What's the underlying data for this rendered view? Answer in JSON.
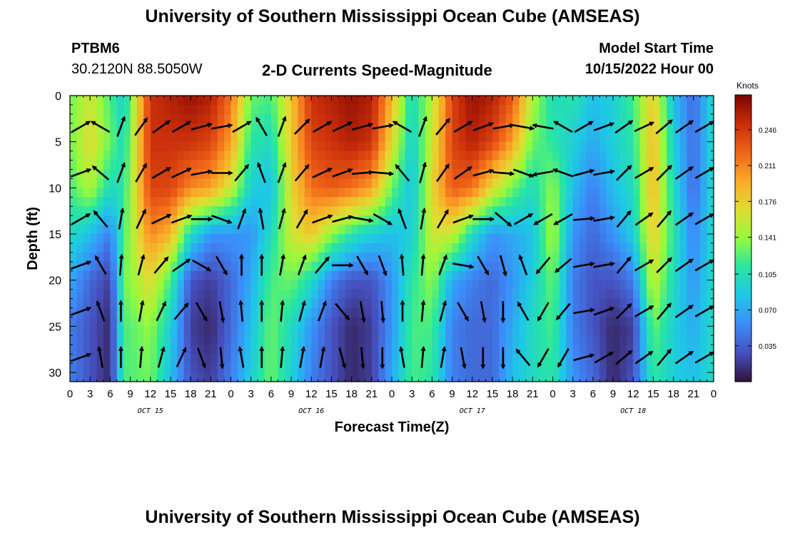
{
  "page": {
    "title": "University of Southern Mississippi Ocean Cube (AMSEAS)",
    "footer_title": "University of Southern Mississippi Ocean Cube (AMSEAS)",
    "station_id": "PTBM6",
    "station_coords": "30.2120N  88.5050W",
    "subtitle": "2-D Currents Speed-Magnitude",
    "model_start_label": "Model Start Time",
    "model_start_value": "10/15/2022 Hour 00"
  },
  "chart_data": {
    "type": "heatmap",
    "title": "2-D Currents Speed-Magnitude",
    "xlabel": "Forecast Time(Z)",
    "ylabel": "Depth (ft)",
    "xlim": [
      0,
      96
    ],
    "ylim": [
      0,
      31
    ],
    "x_ticks": [
      0,
      3,
      6,
      9,
      12,
      15,
      18,
      21,
      24,
      27,
      30,
      33,
      36,
      39,
      42,
      45,
      48,
      51,
      54,
      57,
      60,
      63,
      66,
      69,
      72,
      75,
      78,
      81,
      84,
      87,
      90,
      93,
      96
    ],
    "x_tick_labels": [
      "0",
      "3",
      "6",
      "9",
      "12",
      "15",
      "18",
      "21",
      "0",
      "3",
      "6",
      "9",
      "12",
      "15",
      "18",
      "21",
      "0",
      "3",
      "6",
      "9",
      "12",
      "15",
      "18",
      "21",
      "0",
      "3",
      "6",
      "9",
      "12",
      "15",
      "18",
      "21",
      "0"
    ],
    "y_ticks": [
      0,
      5,
      10,
      15,
      20,
      25,
      30
    ],
    "y_tick_labels": [
      "0",
      "5",
      "10",
      "15",
      "20",
      "25",
      "30"
    ],
    "date_labels": [
      {
        "text": "OCT 15",
        "x": 12
      },
      {
        "text": "OCT 16",
        "x": 36
      },
      {
        "text": "OCT 17",
        "x": 60
      },
      {
        "text": "OCT 18",
        "x": 84
      }
    ],
    "colorbar": {
      "title": "Knots",
      "ticks": [
        0.035,
        0.07,
        0.105,
        0.141,
        0.176,
        0.211,
        0.246
      ],
      "tick_labels": [
        "0.035",
        "0.070",
        "0.105",
        "0.141",
        "0.176",
        "0.211",
        "0.246"
      ],
      "range": [
        0,
        0.28
      ],
      "colormap": "turbo"
    },
    "speed_profiles": [
      {
        "t": 0,
        "s": [
          0.13,
          0.13,
          0.12,
          0.1,
          0.07,
          0.05,
          0.05
        ]
      },
      {
        "t": 3,
        "s": [
          0.16,
          0.17,
          0.15,
          0.08,
          0.04,
          0.03,
          0.03
        ]
      },
      {
        "t": 6,
        "s": [
          0.12,
          0.13,
          0.1,
          0.05,
          0.02,
          0.01,
          0.01
        ]
      },
      {
        "t": 8,
        "s": [
          0.09,
          0.1,
          0.11,
          0.12,
          0.13,
          0.12,
          0.12
        ]
      },
      {
        "t": 12,
        "s": [
          0.25,
          0.25,
          0.24,
          0.21,
          0.17,
          0.14,
          0.13
        ]
      },
      {
        "t": 15,
        "s": [
          0.26,
          0.25,
          0.24,
          0.19,
          0.12,
          0.09,
          0.08
        ]
      },
      {
        "t": 18,
        "s": [
          0.27,
          0.25,
          0.21,
          0.1,
          0.03,
          0.02,
          0.03
        ]
      },
      {
        "t": 21,
        "s": [
          0.26,
          0.24,
          0.2,
          0.06,
          0.02,
          0.01,
          0.02
        ]
      },
      {
        "t": 24,
        "s": [
          0.22,
          0.2,
          0.16,
          0.06,
          0.04,
          0.04,
          0.05
        ]
      },
      {
        "t": 27,
        "s": [
          0.13,
          0.11,
          0.09,
          0.06,
          0.07,
          0.08,
          0.09
        ]
      },
      {
        "t": 30,
        "s": [
          0.12,
          0.1,
          0.08,
          0.1,
          0.12,
          0.13,
          0.13
        ]
      },
      {
        "t": 33,
        "s": [
          0.18,
          0.18,
          0.17,
          0.16,
          0.13,
          0.1,
          0.09
        ]
      },
      {
        "t": 36,
        "s": [
          0.25,
          0.24,
          0.22,
          0.18,
          0.1,
          0.06,
          0.05
        ]
      },
      {
        "t": 39,
        "s": [
          0.26,
          0.25,
          0.23,
          0.14,
          0.05,
          0.03,
          0.03
        ]
      },
      {
        "t": 42,
        "s": [
          0.27,
          0.26,
          0.22,
          0.11,
          0.03,
          0.01,
          0.01
        ]
      },
      {
        "t": 45,
        "s": [
          0.26,
          0.25,
          0.2,
          0.09,
          0.03,
          0.02,
          0.02
        ]
      },
      {
        "t": 48,
        "s": [
          0.19,
          0.17,
          0.13,
          0.08,
          0.06,
          0.06,
          0.07
        ]
      },
      {
        "t": 51,
        "s": [
          0.1,
          0.09,
          0.08,
          0.09,
          0.11,
          0.12,
          0.12
        ]
      },
      {
        "t": 54,
        "s": [
          0.15,
          0.16,
          0.17,
          0.16,
          0.14,
          0.12,
          0.11
        ]
      },
      {
        "t": 57,
        "s": [
          0.24,
          0.24,
          0.23,
          0.16,
          0.07,
          0.05,
          0.05
        ]
      },
      {
        "t": 60,
        "s": [
          0.27,
          0.26,
          0.22,
          0.1,
          0.05,
          0.04,
          0.04
        ]
      },
      {
        "t": 63,
        "s": [
          0.26,
          0.24,
          0.17,
          0.06,
          0.04,
          0.04,
          0.04
        ]
      },
      {
        "t": 66,
        "s": [
          0.23,
          0.2,
          0.13,
          0.07,
          0.06,
          0.07,
          0.08
        ]
      },
      {
        "t": 69,
        "s": [
          0.15,
          0.13,
          0.1,
          0.08,
          0.09,
          0.1,
          0.1
        ]
      },
      {
        "t": 72,
        "s": [
          0.1,
          0.11,
          0.14,
          0.15,
          0.13,
          0.12,
          0.11
        ]
      },
      {
        "t": 75,
        "s": [
          0.11,
          0.09,
          0.08,
          0.06,
          0.05,
          0.05,
          0.06
        ]
      },
      {
        "t": 78,
        "s": [
          0.08,
          0.07,
          0.05,
          0.04,
          0.03,
          0.03,
          0.04
        ]
      },
      {
        "t": 81,
        "s": [
          0.09,
          0.09,
          0.08,
          0.06,
          0.03,
          0.01,
          0.01
        ]
      },
      {
        "t": 84,
        "s": [
          0.12,
          0.11,
          0.1,
          0.09,
          0.05,
          0.02,
          0.03
        ]
      },
      {
        "t": 87,
        "s": [
          0.18,
          0.19,
          0.19,
          0.18,
          0.16,
          0.13,
          0.11
        ]
      },
      {
        "t": 90,
        "s": [
          0.08,
          0.09,
          0.1,
          0.11,
          0.1,
          0.09,
          0.09
        ]
      },
      {
        "t": 93,
        "s": [
          0.04,
          0.04,
          0.04,
          0.05,
          0.06,
          0.07,
          0.08
        ]
      },
      {
        "t": 96,
        "s": [
          0.1,
          0.1,
          0.1,
          0.1,
          0.1,
          0.1,
          0.1
        ]
      }
    ],
    "vector_columns": [
      {
        "t": 0,
        "dirs": [
          60,
          70,
          60,
          70,
          70,
          70
        ]
      },
      {
        "t": 3,
        "dirs": [
          -60,
          -50,
          -40,
          -30,
          -20,
          -10
        ]
      },
      {
        "t": 6,
        "dirs": [
          20,
          20,
          10,
          5,
          0,
          0
        ]
      },
      {
        "t": 9,
        "dirs": [
          35,
          30,
          25,
          15,
          10,
          5
        ]
      },
      {
        "t": 12,
        "dirs": [
          55,
          60,
          65,
          40,
          25,
          15
        ]
      },
      {
        "t": 15,
        "dirs": [
          60,
          65,
          70,
          55,
          40,
          25
        ]
      },
      {
        "t": 18,
        "dirs": [
          75,
          80,
          90,
          120,
          150,
          160
        ]
      },
      {
        "t": 21,
        "dirs": [
          80,
          90,
          110,
          150,
          170,
          175
        ]
      },
      {
        "t": 24,
        "dirs": [
          60,
          40,
          20,
          0,
          -5,
          -10
        ]
      },
      {
        "t": 27,
        "dirs": [
          -30,
          -20,
          -10,
          0,
          0,
          0
        ]
      },
      {
        "t": 30,
        "dirs": [
          20,
          20,
          15,
          10,
          5,
          5
        ]
      },
      {
        "t": 33,
        "dirs": [
          45,
          40,
          30,
          20,
          15,
          10
        ]
      },
      {
        "t": 36,
        "dirs": [
          60,
          65,
          70,
          40,
          20,
          10
        ]
      },
      {
        "t": 39,
        "dirs": [
          65,
          70,
          75,
          90,
          140,
          165
        ]
      },
      {
        "t": 42,
        "dirs": [
          75,
          85,
          100,
          150,
          170,
          175
        ]
      },
      {
        "t": 45,
        "dirs": [
          80,
          95,
          120,
          160,
          175,
          180
        ]
      },
      {
        "t": 48,
        "dirs": [
          -60,
          -40,
          -20,
          -5,
          0,
          -10
        ]
      },
      {
        "t": 51,
        "dirs": [
          20,
          15,
          10,
          5,
          5,
          5
        ]
      },
      {
        "t": 54,
        "dirs": [
          40,
          35,
          30,
          20,
          15,
          10
        ]
      },
      {
        "t": 57,
        "dirs": [
          60,
          55,
          70,
          100,
          150,
          170
        ]
      },
      {
        "t": 60,
        "dirs": [
          70,
          75,
          90,
          150,
          170,
          180
        ]
      },
      {
        "t": 63,
        "dirs": [
          80,
          95,
          130,
          165,
          180,
          180
        ]
      },
      {
        "t": 66,
        "dirs": [
          100,
          110,
          60,
          -20,
          -30,
          -40
        ]
      },
      {
        "t": 69,
        "dirs": [
          -80,
          -100,
          -120,
          -140,
          -150,
          -150
        ]
      },
      {
        "t": 72,
        "dirs": [
          -60,
          -70,
          -120,
          -130,
          -140,
          -150
        ]
      },
      {
        "t": 75,
        "dirs": [
          60,
          75,
          85,
          80,
          80,
          75
        ]
      },
      {
        "t": 78,
        "dirs": [
          70,
          80,
          80,
          80,
          70,
          60
        ]
      },
      {
        "t": 81,
        "dirs": [
          55,
          45,
          40,
          40,
          45,
          50
        ]
      },
      {
        "t": 84,
        "dirs": [
          65,
          60,
          55,
          60,
          60,
          55
        ]
      },
      {
        "t": 87,
        "dirs": [
          50,
          45,
          40,
          45,
          40,
          40
        ]
      },
      {
        "t": 90,
        "dirs": [
          55,
          55,
          55,
          55,
          55,
          55
        ]
      },
      {
        "t": 93,
        "dirs": [
          60,
          60,
          60,
          60,
          60,
          60
        ]
      }
    ]
  }
}
